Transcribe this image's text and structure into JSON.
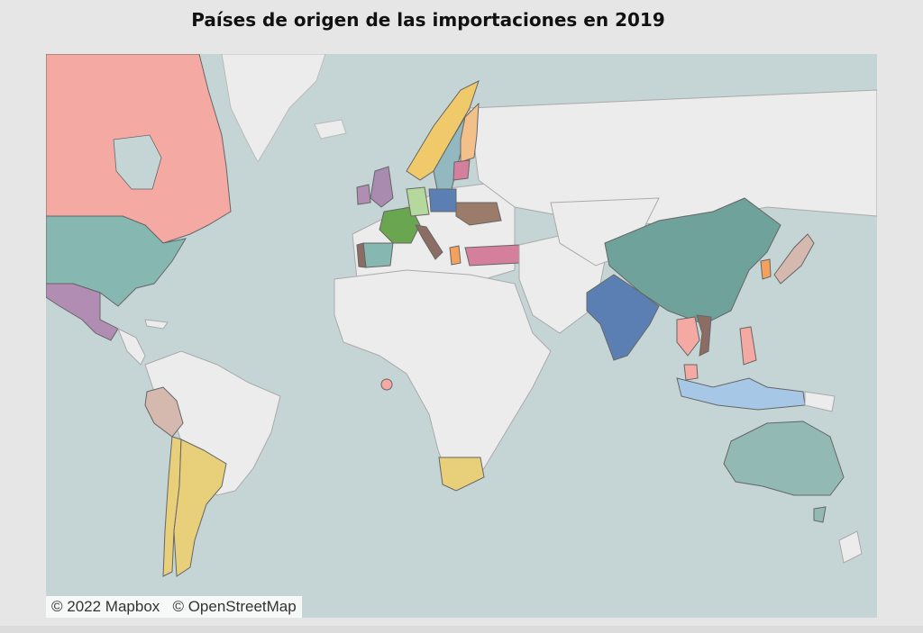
{
  "title": "Países de origen de las importaciones en 2019",
  "attribution": {
    "mapbox": "© 2022 Mapbox",
    "osm": "© OpenStreetMap"
  },
  "colors": {
    "ocean": "#c5d4d4",
    "land_unselected": "#ececec",
    "border": "#aaaaaa",
    "highlight_border": "#555555"
  },
  "highlighted_countries": [
    {
      "name": "Canada",
      "color": "#f4a9a3"
    },
    {
      "name": "United States",
      "color": "#86b7b0"
    },
    {
      "name": "Mexico",
      "color": "#b28db3"
    },
    {
      "name": "Peru",
      "color": "#d5b9ae"
    },
    {
      "name": "Chile",
      "color": "#e8cf7a"
    },
    {
      "name": "Argentina",
      "color": "#e8cf7a"
    },
    {
      "name": "Norway",
      "color": "#f0c96a"
    },
    {
      "name": "Sweden",
      "color": "#92b9c0"
    },
    {
      "name": "Finland",
      "color": "#f4c08a"
    },
    {
      "name": "United Kingdom",
      "color": "#a98bb0"
    },
    {
      "name": "Ireland",
      "color": "#b28db3"
    },
    {
      "name": "France",
      "color": "#6aa64f"
    },
    {
      "name": "Spain",
      "color": "#86b7b0"
    },
    {
      "name": "Portugal",
      "color": "#8c6d63"
    },
    {
      "name": "Germany",
      "color": "#b5d99c"
    },
    {
      "name": "Poland",
      "color": "#5b7fb2"
    },
    {
      "name": "Italy",
      "color": "#8c6d63"
    },
    {
      "name": "Ukraine",
      "color": "#9b7c6a"
    },
    {
      "name": "Turkey",
      "color": "#d47f9c"
    },
    {
      "name": "Greece",
      "color": "#f4a15e"
    },
    {
      "name": "China",
      "color": "#6ea29a"
    },
    {
      "name": "India",
      "color": "#5b7fb2"
    },
    {
      "name": "Japan",
      "color": "#d5b9ae"
    },
    {
      "name": "South Korea",
      "color": "#f4a15e"
    },
    {
      "name": "Thailand",
      "color": "#f4a9a3"
    },
    {
      "name": "Vietnam",
      "color": "#8c6d63"
    },
    {
      "name": "Philippines",
      "color": "#f4a9a3"
    },
    {
      "name": "Malaysia",
      "color": "#f4a9a3"
    },
    {
      "name": "Indonesia",
      "color": "#a6c8e6"
    },
    {
      "name": "South Africa",
      "color": "#e8cf7a"
    },
    {
      "name": "Australia",
      "color": "#92b9b4"
    },
    {
      "name": "Nigeria",
      "color": "#f4a9a3"
    }
  ]
}
